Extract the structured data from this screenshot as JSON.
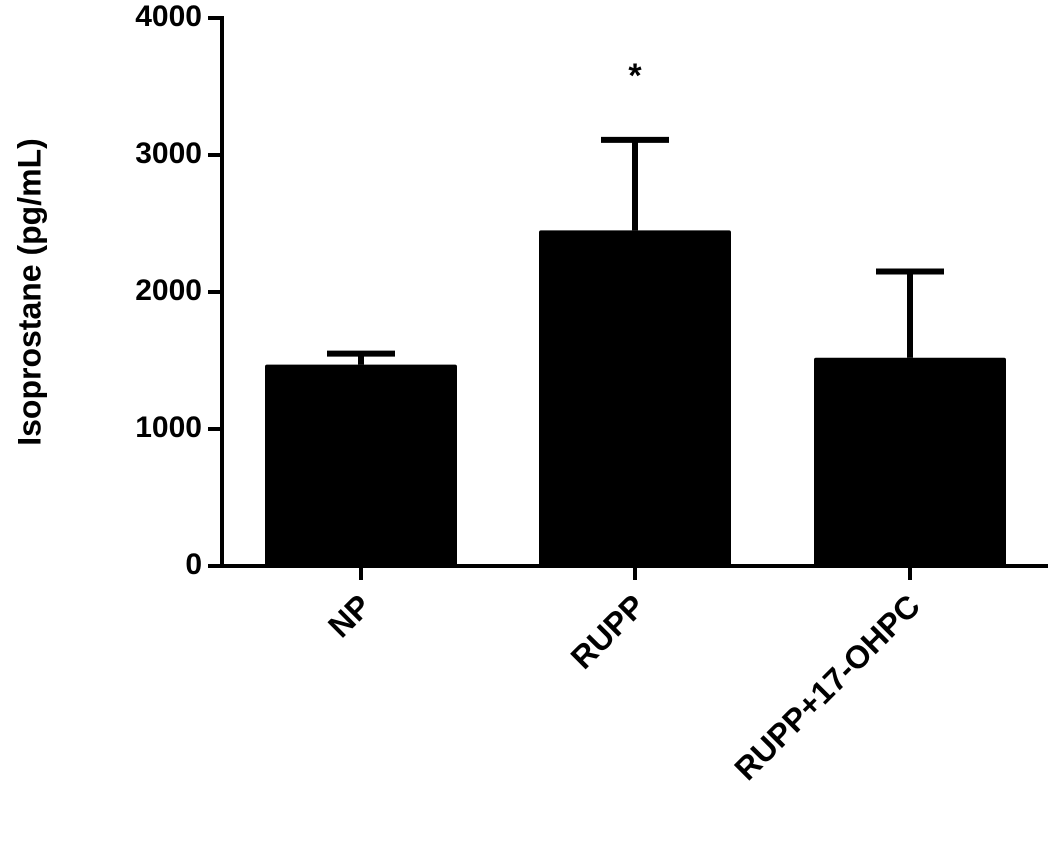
{
  "chart_data": {
    "type": "bar",
    "y_label": "Isoprostane (pg/mL)",
    "categories": [
      "NP",
      "RUPP",
      "RUPP+17-OHPC"
    ],
    "values": [
      1470,
      2450,
      1520
    ],
    "errors": [
      80,
      660,
      630
    ],
    "color": "#000000",
    "annotation": "*",
    "ylim": [
      0,
      4000
    ],
    "yticks": [
      0,
      1000,
      2000,
      3000,
      4000
    ]
  }
}
